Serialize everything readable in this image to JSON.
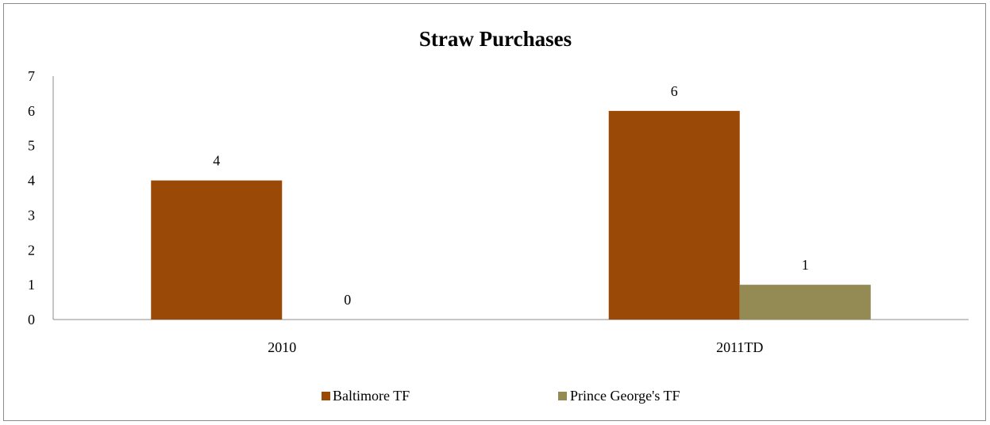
{
  "chart_data": {
    "type": "bar",
    "title": "Straw Purchases",
    "categories": [
      "2010",
      "2011TD"
    ],
    "series": [
      {
        "name": "Baltimore TF",
        "values": [
          4,
          6
        ],
        "color": "#9a4906"
      },
      {
        "name": "Prince George's  TF",
        "values": [
          0,
          1
        ],
        "color": "#948a54"
      }
    ],
    "ylim": [
      0,
      7
    ],
    "yticks": [
      "0",
      "1",
      "2",
      "3",
      "4",
      "5",
      "6",
      "7"
    ],
    "grid": false,
    "legend": "bottom"
  }
}
